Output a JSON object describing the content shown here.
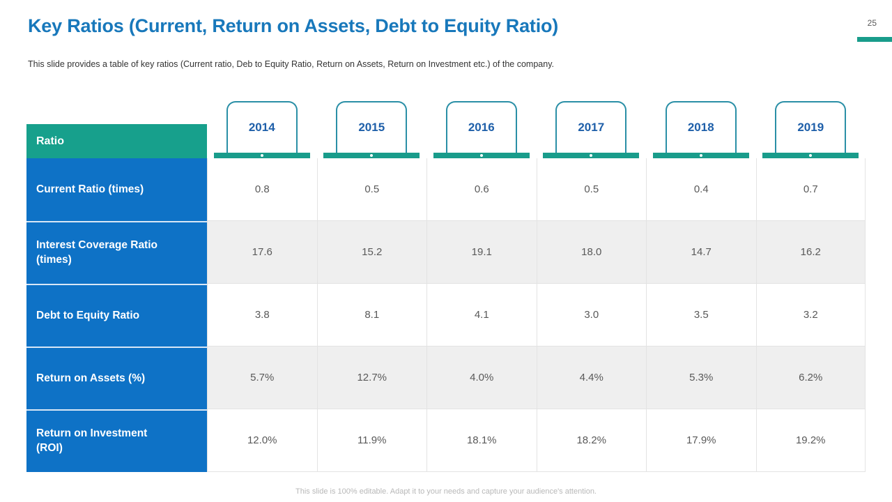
{
  "slide": {
    "title": "Key Ratios (Current, Return on Assets, Debt to Equity Ratio)",
    "page_number": "25",
    "subtitle": "This slide provides  a table of key ratios (Current  ratio, Deb to Equity Ratio, Return  on Assets, Return on Investment  etc.) of the company.",
    "footer": "This slide is 100% editable.  Adapt it to your needs and capture your audience's attention."
  },
  "colors": {
    "title_blue": "#1878bb",
    "label_cell_blue": "#0e72c6",
    "year_text_blue": "#1e5fa9",
    "teal_accent": "#199c8b",
    "ratio_header_teal": "#17a08c",
    "year_box_border": "#2a8fa6",
    "alt_row_gray": "#efefef",
    "grid_line": "#e3e3e3",
    "value_text": "#595959",
    "footer_gray": "#b8b8b8"
  },
  "table": {
    "header": {
      "ratio_label": "Ratio",
      "years": [
        "2014",
        "2015",
        "2016",
        "2017",
        "2018",
        "2019"
      ]
    },
    "rows": [
      {
        "label": "Current Ratio (times)",
        "values": [
          "0.8",
          "0.5",
          "0.6",
          "0.5",
          "0.4",
          "0.7"
        ]
      },
      {
        "label": "Interest Coverage Ratio (times)",
        "values": [
          "17.6",
          "15.2",
          "19.1",
          "18.0",
          "14.7",
          "16.2"
        ]
      },
      {
        "label": "Debt to Equity Ratio",
        "values": [
          "3.8",
          "8.1",
          "4.1",
          "3.0",
          "3.5",
          "3.2"
        ]
      },
      {
        "label": "Return on Assets (%)",
        "values": [
          "5.7%",
          "12.7%",
          "4.0%",
          "4.4%",
          "5.3%",
          "6.2%"
        ]
      },
      {
        "label": "Return on Investment (ROI)",
        "values": [
          "12.0%",
          "11.9%",
          "18.1%",
          "18.2%",
          "17.9%",
          "19.2%"
        ]
      }
    ]
  }
}
